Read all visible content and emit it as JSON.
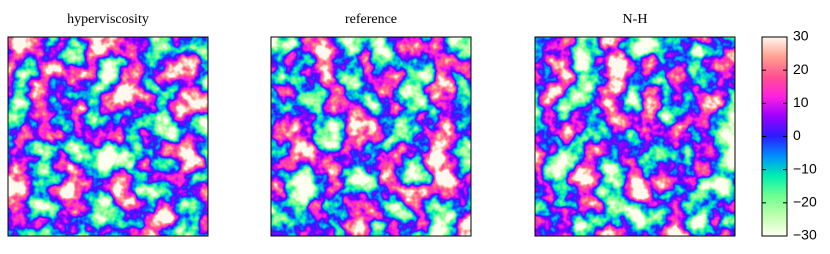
{
  "chart_data": {
    "type": "heatmap",
    "panels": [
      {
        "title": "hyperviscosity"
      },
      {
        "title": "reference"
      },
      {
        "title": "N-H"
      }
    ],
    "colorbar": {
      "lim": [
        -30,
        30
      ],
      "ticks": [
        {
          "value": -30,
          "label": "−30"
        },
        {
          "value": -20,
          "label": "−20"
        },
        {
          "value": -10,
          "label": "−10"
        },
        0,
        10,
        20,
        30
      ],
      "colormap": [
        "#fffff0",
        "#c0ffb0",
        "#70ff90",
        "#00f0b0",
        "#0090ff",
        "#2a1cff",
        "#9a00ff",
        "#ff20e0",
        "#ff5090",
        "#ffa090",
        "#fff8f0"
      ]
    }
  }
}
